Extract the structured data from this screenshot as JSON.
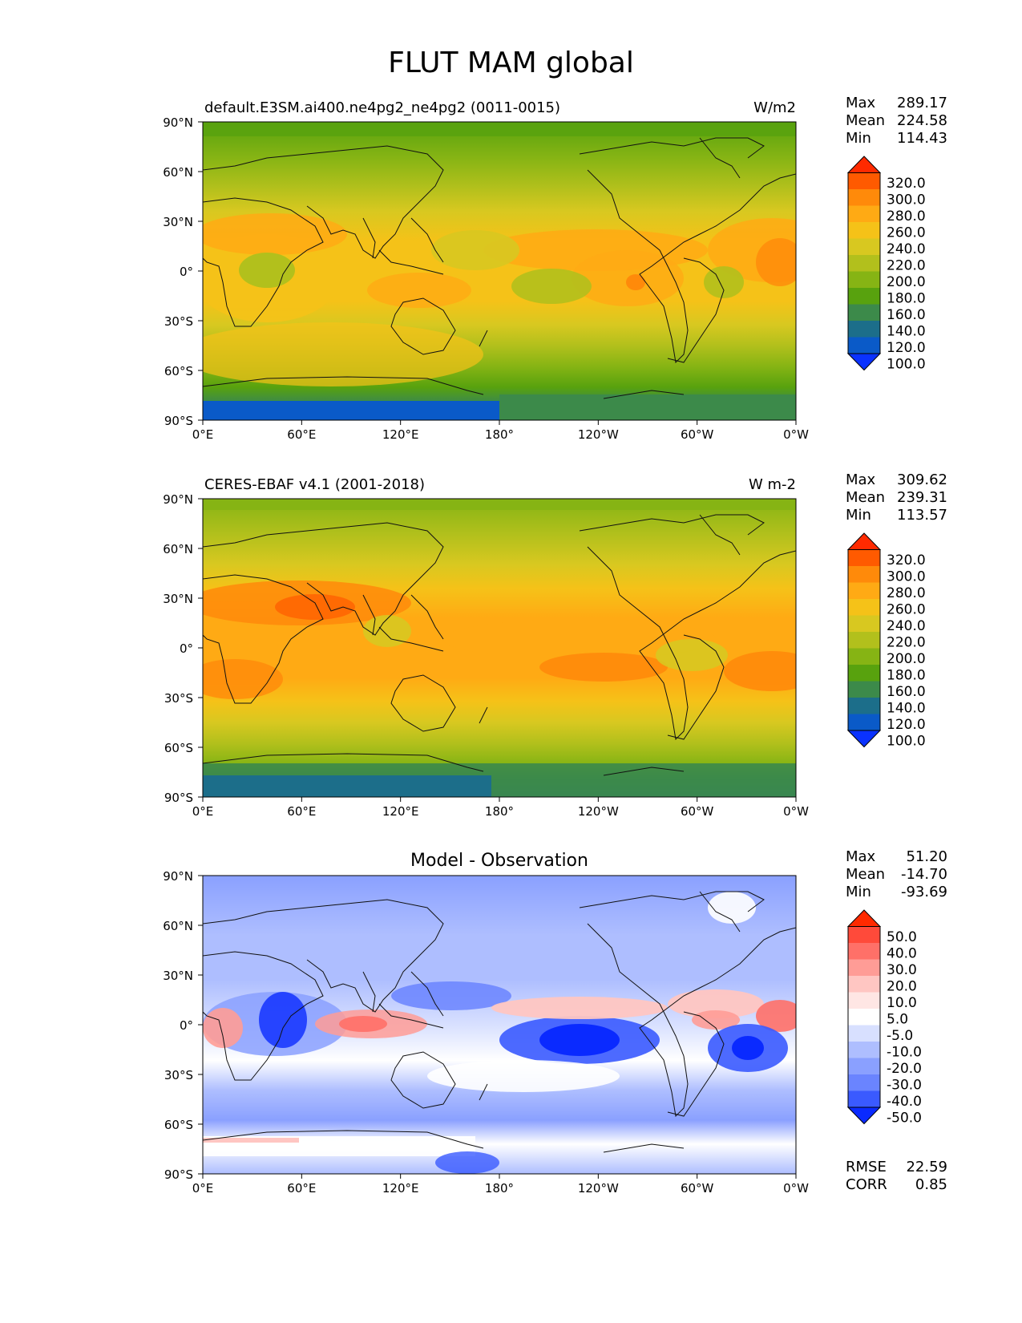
{
  "title": "FLUT MAM global",
  "lat_ticks": [
    "90°N",
    "60°N",
    "30°N",
    "0°",
    "30°S",
    "60°S",
    "90°S"
  ],
  "lon_ticks": [
    "0°E",
    "60°E",
    "120°E",
    "180°",
    "120°W",
    "60°W",
    "0°W"
  ],
  "panels": [
    {
      "left_title": "default.E3SM.ai400.ne4pg2_ne4pg2 (0011-0015)",
      "center_title": "",
      "units": "W/m2",
      "stats": [
        [
          "Max",
          "289.17"
        ],
        [
          "Mean",
          "224.58"
        ],
        [
          "Min",
          "114.43"
        ]
      ],
      "extra_stats": [],
      "colorbar_labels": [
        "320.0",
        "300.0",
        "280.0",
        "260.0",
        "240.0",
        "220.0",
        "200.0",
        "180.0",
        "160.0",
        "140.0",
        "120.0",
        "100.0"
      ]
    },
    {
      "left_title": "CERES-EBAF v4.1 (2001-2018)",
      "center_title": "",
      "units": "W m-2",
      "stats": [
        [
          "Max",
          "309.62"
        ],
        [
          "Mean",
          "239.31"
        ],
        [
          "Min",
          "113.57"
        ]
      ],
      "extra_stats": [],
      "colorbar_labels": [
        "320.0",
        "300.0",
        "280.0",
        "260.0",
        "240.0",
        "220.0",
        "200.0",
        "180.0",
        "160.0",
        "140.0",
        "120.0",
        "100.0"
      ]
    },
    {
      "left_title": "",
      "center_title": "Model - Observation",
      "units": "",
      "stats": [
        [
          "Max",
          "51.20"
        ],
        [
          "Mean",
          "-14.70"
        ],
        [
          "Min",
          "-93.69"
        ]
      ],
      "extra_stats": [
        [
          "RMSE",
          "22.59"
        ],
        [
          "CORR",
          "0.85"
        ]
      ],
      "colorbar_labels": [
        "50.0",
        "40.0",
        "30.0",
        "20.0",
        "10.0",
        "5.0",
        "-5.0",
        "-10.0",
        "-20.0",
        "-30.0",
        "-40.0",
        "-50.0"
      ]
    }
  ],
  "colors": {
    "sequential": [
      "#ff2a00",
      "#ff5a00",
      "#ff8a0a",
      "#ffaa14",
      "#f5c218",
      "#d8c820",
      "#b2c01c",
      "#86b414",
      "#58a20e",
      "#3c8a4a",
      "#1c6e8a",
      "#0a5ac8",
      "#0a32ff"
    ],
    "diverging": [
      "#ff2a00",
      "#ff4a3a",
      "#ff7068",
      "#ff9c96",
      "#ffc6c2",
      "#ffe6e4",
      "#ffffff",
      "#d8e0ff",
      "#aebeff",
      "#8aa0ff",
      "#6a84ff",
      "#3a5aff",
      "#0a2aff"
    ]
  }
}
